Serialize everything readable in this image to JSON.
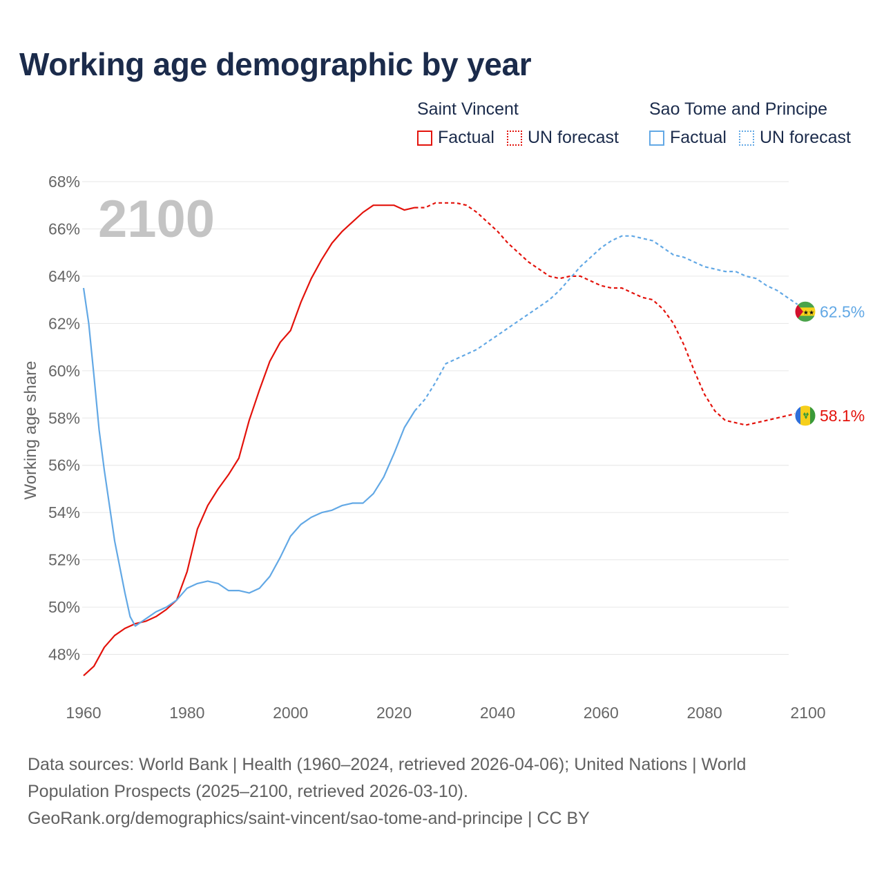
{
  "title": "Working age demographic by year",
  "legend": {
    "groups": [
      {
        "name": "Saint Vincent",
        "factual_label": "Factual",
        "forecast_label": "UN forecast",
        "color": "#e3120b"
      },
      {
        "name": "Sao Tome and Principe",
        "factual_label": "Factual",
        "forecast_label": "UN forecast",
        "color": "#62a8e5"
      }
    ]
  },
  "year_watermark": "2100",
  "footer": {
    "line1": "Data sources: World Bank | Health (1960–2024, retrieved 2026-04-06); United Nations | World",
    "line2": "Population Prospects (2025–2100, retrieved 2026-03-10).",
    "line3": "GeoRank.org/demographics/saint-vincent/sao-tome-and-principe | CC BY"
  },
  "chart_data": {
    "type": "line",
    "title": "Working age demographic by year",
    "xlabel": "",
    "ylabel": "Working age share",
    "xlim": [
      1960,
      2100
    ],
    "ylim": [
      46,
      68
    ],
    "x_ticks": [
      1960,
      1980,
      2000,
      2020,
      2040,
      2060,
      2080,
      2100
    ],
    "y_ticks": [
      48,
      50,
      52,
      54,
      56,
      58,
      60,
      62,
      64,
      66,
      68
    ],
    "y_tick_labels": [
      "48%",
      "50%",
      "52%",
      "54%",
      "56%",
      "58%",
      "60%",
      "62%",
      "64%",
      "66%",
      "68%"
    ],
    "grid": true,
    "factual_end_year": 2024,
    "series": [
      {
        "name": "Saint Vincent",
        "color": "#e3120b",
        "end_label": "58.1%",
        "points": [
          [
            1960,
            47.1
          ],
          [
            1962,
            47.5
          ],
          [
            1964,
            48.3
          ],
          [
            1966,
            48.8
          ],
          [
            1968,
            49.1
          ],
          [
            1970,
            49.3
          ],
          [
            1972,
            49.4
          ],
          [
            1974,
            49.6
          ],
          [
            1976,
            49.9
          ],
          [
            1978,
            50.3
          ],
          [
            1980,
            51.5
          ],
          [
            1982,
            53.3
          ],
          [
            1984,
            54.3
          ],
          [
            1986,
            55.0
          ],
          [
            1988,
            55.6
          ],
          [
            1990,
            56.3
          ],
          [
            1992,
            57.9
          ],
          [
            1994,
            59.2
          ],
          [
            1996,
            60.4
          ],
          [
            1998,
            61.2
          ],
          [
            2000,
            61.7
          ],
          [
            2002,
            62.9
          ],
          [
            2004,
            63.9
          ],
          [
            2006,
            64.7
          ],
          [
            2008,
            65.4
          ],
          [
            2010,
            65.9
          ],
          [
            2012,
            66.3
          ],
          [
            2014,
            66.7
          ],
          [
            2016,
            67.0
          ],
          [
            2018,
            67.0
          ],
          [
            2020,
            67.0
          ],
          [
            2022,
            66.8
          ],
          [
            2024,
            66.9
          ],
          [
            2026,
            66.9
          ],
          [
            2028,
            67.1
          ],
          [
            2030,
            67.1
          ],
          [
            2032,
            67.1
          ],
          [
            2034,
            67.0
          ],
          [
            2036,
            66.7
          ],
          [
            2038,
            66.3
          ],
          [
            2040,
            65.9
          ],
          [
            2042,
            65.4
          ],
          [
            2044,
            65.0
          ],
          [
            2046,
            64.6
          ],
          [
            2048,
            64.3
          ],
          [
            2050,
            64.0
          ],
          [
            2052,
            63.9
          ],
          [
            2054,
            64.0
          ],
          [
            2056,
            64.0
          ],
          [
            2058,
            63.8
          ],
          [
            2060,
            63.6
          ],
          [
            2062,
            63.5
          ],
          [
            2064,
            63.5
          ],
          [
            2066,
            63.3
          ],
          [
            2068,
            63.1
          ],
          [
            2070,
            63.0
          ],
          [
            2072,
            62.6
          ],
          [
            2074,
            62.0
          ],
          [
            2076,
            61.1
          ],
          [
            2078,
            60.0
          ],
          [
            2080,
            59.0
          ],
          [
            2082,
            58.3
          ],
          [
            2084,
            57.9
          ],
          [
            2086,
            57.8
          ],
          [
            2088,
            57.7
          ],
          [
            2090,
            57.8
          ],
          [
            2092,
            57.9
          ],
          [
            2094,
            58.0
          ],
          [
            2096,
            58.1
          ],
          [
            2098,
            58.2
          ],
          [
            2100,
            58.1
          ]
        ]
      },
      {
        "name": "Sao Tome and Principe",
        "color": "#62a8e5",
        "end_label": "62.5%",
        "points": [
          [
            1960,
            63.5
          ],
          [
            1961,
            62.0
          ],
          [
            1962,
            59.8
          ],
          [
            1963,
            57.5
          ],
          [
            1964,
            55.8
          ],
          [
            1966,
            52.8
          ],
          [
            1968,
            50.6
          ],
          [
            1969,
            49.6
          ],
          [
            1970,
            49.2
          ],
          [
            1972,
            49.5
          ],
          [
            1974,
            49.8
          ],
          [
            1976,
            50.0
          ],
          [
            1978,
            50.3
          ],
          [
            1980,
            50.8
          ],
          [
            1982,
            51.0
          ],
          [
            1984,
            51.1
          ],
          [
            1986,
            51.0
          ],
          [
            1988,
            50.7
          ],
          [
            1990,
            50.7
          ],
          [
            1992,
            50.6
          ],
          [
            1994,
            50.8
          ],
          [
            1996,
            51.3
          ],
          [
            1998,
            52.1
          ],
          [
            2000,
            53.0
          ],
          [
            2002,
            53.5
          ],
          [
            2004,
            53.8
          ],
          [
            2006,
            54.0
          ],
          [
            2008,
            54.1
          ],
          [
            2010,
            54.3
          ],
          [
            2012,
            54.4
          ],
          [
            2014,
            54.4
          ],
          [
            2016,
            54.8
          ],
          [
            2018,
            55.5
          ],
          [
            2020,
            56.5
          ],
          [
            2022,
            57.6
          ],
          [
            2024,
            58.3
          ],
          [
            2026,
            58.8
          ],
          [
            2028,
            59.5
          ],
          [
            2030,
            60.3
          ],
          [
            2032,
            60.5
          ],
          [
            2034,
            60.7
          ],
          [
            2036,
            60.9
          ],
          [
            2038,
            61.2
          ],
          [
            2040,
            61.5
          ],
          [
            2042,
            61.8
          ],
          [
            2044,
            62.1
          ],
          [
            2046,
            62.4
          ],
          [
            2048,
            62.7
          ],
          [
            2050,
            63.0
          ],
          [
            2052,
            63.4
          ],
          [
            2054,
            63.9
          ],
          [
            2056,
            64.4
          ],
          [
            2058,
            64.8
          ],
          [
            2060,
            65.2
          ],
          [
            2062,
            65.5
          ],
          [
            2064,
            65.7
          ],
          [
            2066,
            65.7
          ],
          [
            2068,
            65.6
          ],
          [
            2070,
            65.5
          ],
          [
            2072,
            65.2
          ],
          [
            2074,
            64.9
          ],
          [
            2076,
            64.8
          ],
          [
            2078,
            64.6
          ],
          [
            2080,
            64.4
          ],
          [
            2082,
            64.3
          ],
          [
            2084,
            64.2
          ],
          [
            2086,
            64.2
          ],
          [
            2088,
            64.0
          ],
          [
            2090,
            63.9
          ],
          [
            2092,
            63.6
          ],
          [
            2094,
            63.4
          ],
          [
            2096,
            63.1
          ],
          [
            2098,
            62.8
          ],
          [
            2100,
            62.5
          ]
        ]
      }
    ]
  }
}
